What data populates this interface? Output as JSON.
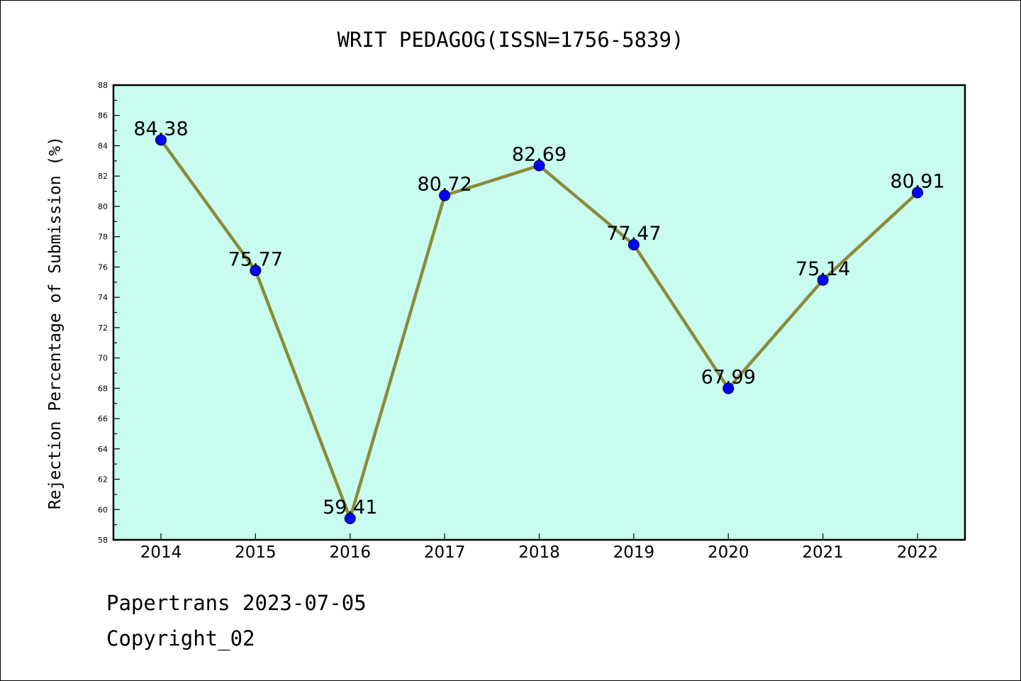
{
  "chart_data": {
    "type": "line",
    "title": "WRIT PEDAGOG(ISSN=1756-5839)",
    "xlabel": "",
    "ylabel": "Rejection Percentage of Submission (%)",
    "categories": [
      "2014",
      "2015",
      "2016",
      "2017",
      "2018",
      "2019",
      "2020",
      "2021",
      "2022"
    ],
    "series": [
      {
        "values": [
          84.38,
          75.77,
          59.41,
          80.72,
          82.69,
          77.47,
          67.99,
          75.14,
          80.91
        ],
        "labels": [
          "84.38",
          "75.77",
          "59.41",
          "80.72",
          "82.69",
          "77.47",
          "67.99",
          "75.14",
          "80.91"
        ],
        "line_color": "#8b8b3a",
        "marker_color": "#0000ff"
      }
    ],
    "ylim": [
      58,
      88
    ],
    "yticks": [
      "58",
      "60",
      "62",
      "64",
      "66",
      "68",
      "70",
      "72",
      "74",
      "76",
      "78",
      "80",
      "82",
      "84",
      "86",
      "88"
    ],
    "plot_background": "#c8fcee",
    "grid": false,
    "legend": "none"
  },
  "footer": {
    "line1": "Papertrans 2023-07-05",
    "line2": "Copyright_02"
  }
}
